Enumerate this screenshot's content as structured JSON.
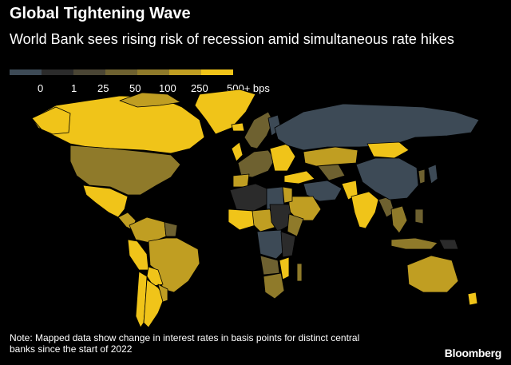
{
  "title": "Global Tightening Wave",
  "subtitle": "World Bank sees rising risk of recession amid simultaneous rate hikes",
  "legend": {
    "labels": [
      "0",
      "1",
      "25",
      "50",
      "100",
      "250",
      "500+ bps"
    ],
    "colors": [
      "#3d4a56",
      "#2b2b2b",
      "#4a4534",
      "#6e6130",
      "#8f7a2a",
      "#c09e22",
      "#f0c419"
    ]
  },
  "palette": {
    "na": "#3d4a56",
    "zero": "#2b2b2b",
    "low": "#4a4534",
    "mid_low": "#6e6130",
    "mid": "#8f7a2a",
    "high": "#c09e22",
    "top": "#f0c419"
  },
  "note": "Note: Mapped data show change in interest rates in basis points for distinct central banks since the start of 2022",
  "brand": "Bloomberg"
}
